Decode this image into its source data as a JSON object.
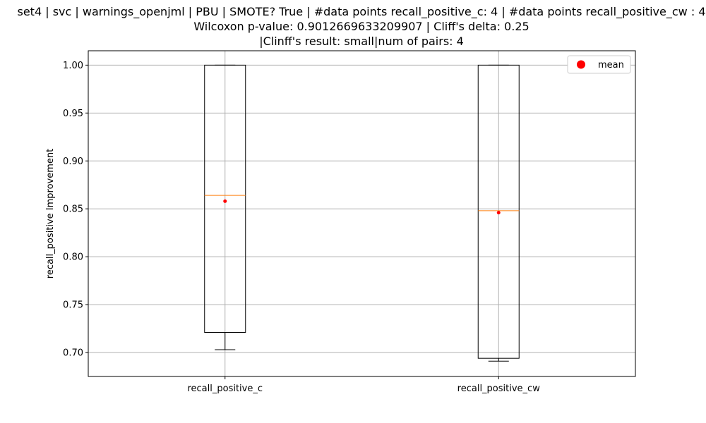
{
  "chart_data": {
    "type": "box",
    "title_lines": [
      "set4 | svc | warnings_openjml | PBU | SMOTE? True | #data points recall_positive_c: 4 | #data points recall_positive_cw : 4",
      "Wilcoxon p-value: 0.9012669633209907 | Cliff's delta: 0.25",
      "|Clinff's result: small|num of pairs: 4"
    ],
    "xlabel": "",
    "ylabel": "recall_positive Improvement",
    "ylim": [
      0.675,
      1.015
    ],
    "yticks": [
      0.7,
      0.75,
      0.8,
      0.85,
      0.9,
      0.95,
      1.0
    ],
    "ytick_labels": [
      "0.70",
      "0.75",
      "0.80",
      "0.85",
      "0.90",
      "0.95",
      "1.00"
    ],
    "grid": true,
    "legend": {
      "placement": "top-right",
      "entries": [
        {
          "label": "mean",
          "color": "#ff0000",
          "marker": "circle"
        }
      ]
    },
    "colors": {
      "box": "#000000",
      "median": "#ff7f0e",
      "mean": "#ff0000",
      "grid": "#b0b0b0"
    },
    "categories": [
      "recall_positive_c",
      "recall_positive_cw"
    ],
    "boxes": [
      {
        "name": "recall_positive_c",
        "whisker_low": 0.703,
        "q1": 0.721,
        "median": 0.864,
        "q3": 1.0,
        "whisker_high": 1.0,
        "mean": 0.858
      },
      {
        "name": "recall_positive_cw",
        "whisker_low": 0.691,
        "q1": 0.694,
        "median": 0.848,
        "q3": 1.0,
        "whisker_high": 1.0,
        "mean": 0.846
      }
    ]
  }
}
